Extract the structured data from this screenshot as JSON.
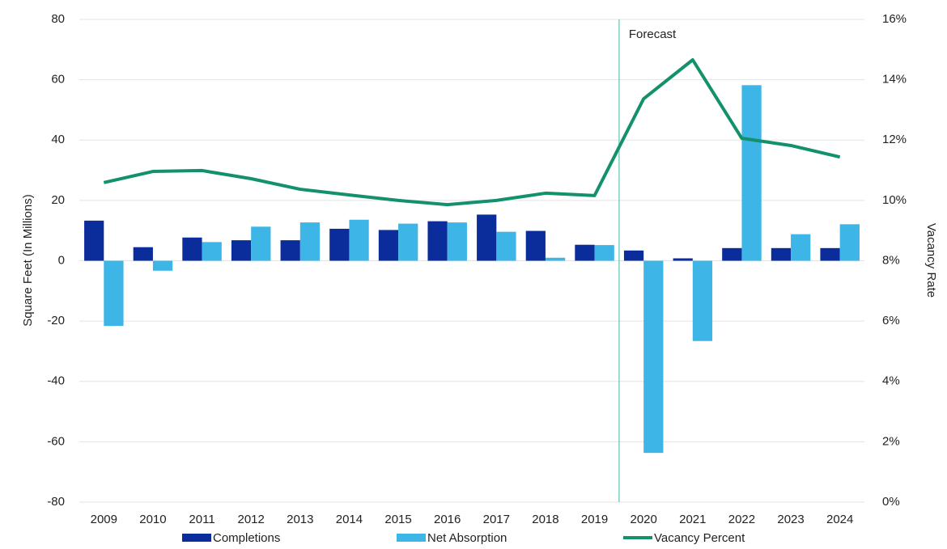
{
  "chart_data": {
    "type": "bar",
    "annotation": "Forecast",
    "ylabel": "Square Feet (In Millions)",
    "y2label": "Vacancy Rate",
    "categories": [
      "2009",
      "2010",
      "2011",
      "2012",
      "2013",
      "2014",
      "2015",
      "2016",
      "2017",
      "2018",
      "2019",
      "2020",
      "2021",
      "2022",
      "2023",
      "2024"
    ],
    "series": [
      {
        "name": "Completions",
        "type": "bar",
        "color": "#0b2d9c",
        "values": [
          13.3,
          4.5,
          7.7,
          6.8,
          6.8,
          10.6,
          10.2,
          13.1,
          15.3,
          9.9,
          5.3,
          3.4,
          0.8,
          4.2,
          4.2,
          4.2
        ]
      },
      {
        "name": "Net Absorption",
        "type": "bar",
        "color": "#3db5e6",
        "values": [
          -21.6,
          -3.3,
          6.2,
          11.3,
          12.7,
          13.6,
          12.3,
          12.7,
          9.6,
          1.0,
          5.2,
          -63.7,
          -26.6,
          58.2,
          8.8,
          12.1
        ]
      },
      {
        "name": "Vacancy Percent",
        "type": "line",
        "axis": "y2",
        "color": "#13906c",
        "values": [
          10.59,
          10.96,
          10.99,
          10.72,
          10.37,
          10.18,
          10.0,
          9.86,
          10.0,
          10.24,
          10.16,
          13.37,
          14.66,
          12.06,
          11.82,
          11.44
        ]
      }
    ],
    "ylim": [
      -80,
      80
    ],
    "yticks": [
      -80,
      -60,
      -40,
      -20,
      0,
      20,
      40,
      60,
      80
    ],
    "y2lim": [
      0,
      16
    ],
    "y2ticks": [
      {
        "value": 0,
        "label": "0%"
      },
      {
        "value": 2,
        "label": "2%"
      },
      {
        "value": 4,
        "label": "4%"
      },
      {
        "value": 6,
        "label": "6%"
      },
      {
        "value": 8,
        "label": "8%"
      },
      {
        "value": 10,
        "label": "10%"
      },
      {
        "value": 12,
        "label": "12%"
      },
      {
        "value": 14,
        "label": "14%"
      },
      {
        "value": 16,
        "label": "16%"
      }
    ],
    "grid": true,
    "legend": "bottom"
  }
}
